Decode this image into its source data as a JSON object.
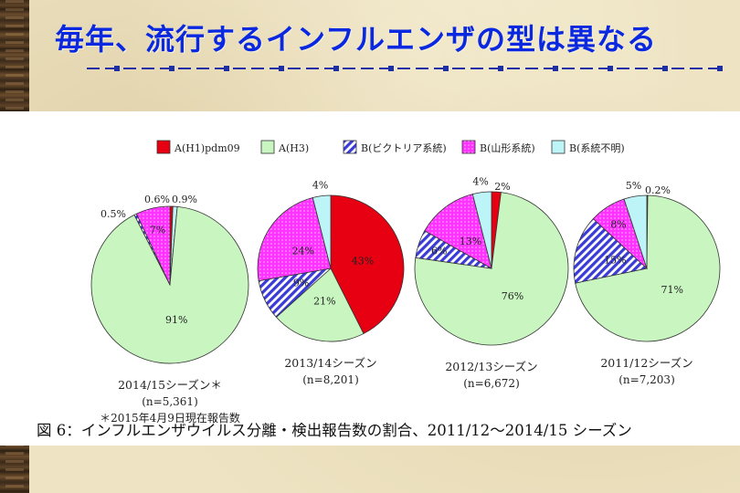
{
  "slide_title": "毎年、流行するインフルエンザの型は異なる",
  "caption": "図 6：インフルエンザウイルス分離・検出報告数の割合、2011/12〜2014/15 シーズン",
  "chart_data": {
    "type": "pie",
    "legend_position": "top",
    "legend": [
      {
        "label": "A(H1)pdm09",
        "color": "#e60012"
      },
      {
        "label": "A(H3)",
        "color": "#c8f5c0"
      },
      {
        "label": "B(ビクトリア系統)",
        "color": "#3b3bd6"
      },
      {
        "label": "B(山形系統)",
        "color": "#ff33ff"
      },
      {
        "label": "B(系統不明)",
        "color": "#bdf4f7"
      }
    ],
    "charts": [
      {
        "season": "2014/15シーズン＊",
        "n": "(n=5,361)",
        "note": "＊2015年4月9日現在報告数",
        "slices": [
          {
            "category": "A(H1)pdm09",
            "value": 0.6,
            "label": "0.6%"
          },
          {
            "category": "A(H3)",
            "value": 91,
            "label": "91%"
          },
          {
            "category": "B(ビクトリア系統)",
            "value": 0.5,
            "label": "0.5%"
          },
          {
            "category": "B(山形系統)",
            "value": 7,
            "label": "7%"
          },
          {
            "category": "B(系統不明)",
            "value": 0.9,
            "label": "0.9%"
          }
        ]
      },
      {
        "season": "2013/14シーズン",
        "n": "(n=8,201)",
        "slices": [
          {
            "category": "A(H1)pdm09",
            "value": 43,
            "label": "43%"
          },
          {
            "category": "A(H3)",
            "value": 21,
            "label": "21%"
          },
          {
            "category": "B(ビクトリア系統)",
            "value": 9,
            "label": "9%"
          },
          {
            "category": "B(山形系統)",
            "value": 24,
            "label": "24%"
          },
          {
            "category": "B(系統不明)",
            "value": 4,
            "label": "4%"
          }
        ]
      },
      {
        "season": "2012/13シーズン",
        "n": "(n=6,672)",
        "slices": [
          {
            "category": "A(H1)pdm09",
            "value": 2,
            "label": "2%"
          },
          {
            "category": "A(H3)",
            "value": 76,
            "label": "76%"
          },
          {
            "category": "B(ビクトリア系統)",
            "value": 6,
            "label": "6%"
          },
          {
            "category": "B(山形系統)",
            "value": 13,
            "label": "13%"
          },
          {
            "category": "B(系統不明)",
            "value": 4,
            "label": "4%"
          }
        ]
      },
      {
        "season": "2011/12シーズン",
        "n": "(n=7,203)",
        "slices": [
          {
            "category": "A(H1)pdm09",
            "value": 0.2,
            "label": "0.2%"
          },
          {
            "category": "A(H3)",
            "value": 71,
            "label": "71%"
          },
          {
            "category": "B(ビクトリア系統)",
            "value": 15,
            "label": "15%"
          },
          {
            "category": "B(山形系統)",
            "value": 8,
            "label": "8%"
          },
          {
            "category": "B(系統不明)",
            "value": 5,
            "label": "5%"
          }
        ]
      }
    ]
  }
}
